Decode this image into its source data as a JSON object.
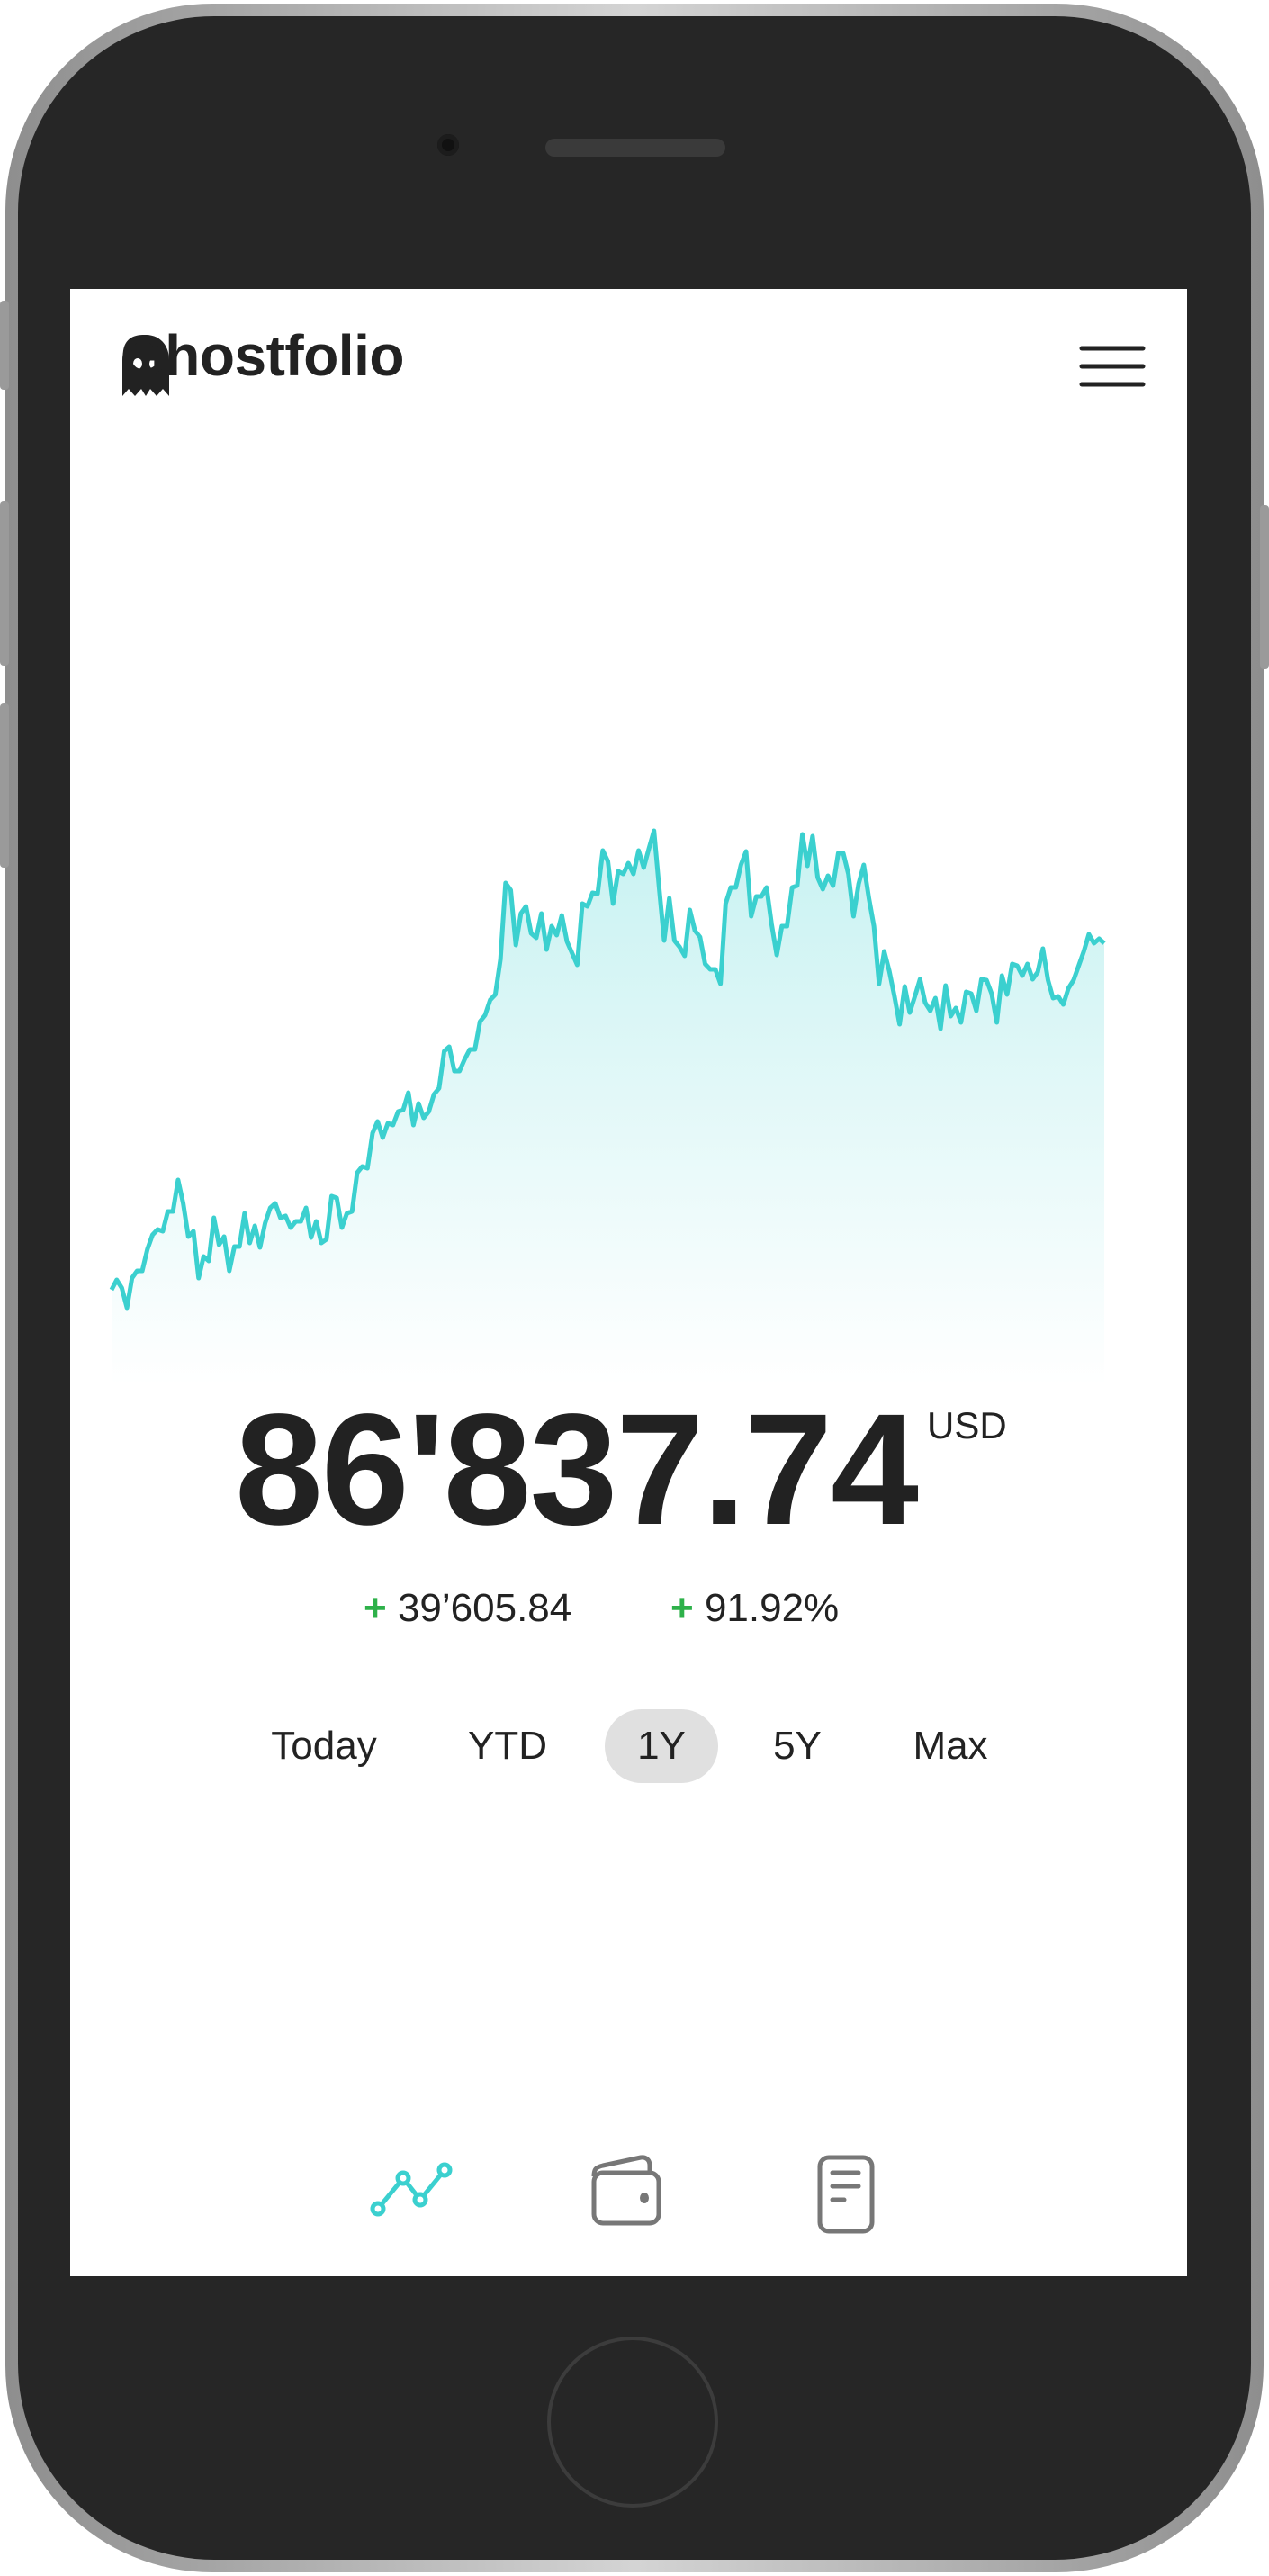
{
  "header": {
    "title": "Ghostfolio",
    "logo_icon": "ghost-icon",
    "menu_icon": "hamburger-menu-icon"
  },
  "summary": {
    "value": "86'837.74",
    "currency": "USD",
    "change_absolute": "39’605.84",
    "change_percent": "91.92%",
    "plus_sign": "+",
    "positive_color": "#2eb14a"
  },
  "range_tabs": {
    "items": [
      {
        "label": "Today"
      },
      {
        "label": "YTD"
      },
      {
        "label": "1Y"
      },
      {
        "label": "5Y"
      },
      {
        "label": "Max"
      }
    ],
    "selected": "1Y"
  },
  "bottom_nav": {
    "items": [
      {
        "icon": "line-chart-icon",
        "active": true
      },
      {
        "icon": "wallet-icon",
        "active": false
      },
      {
        "icon": "document-icon",
        "active": false
      }
    ],
    "active_color": "#3bd0cf",
    "inactive_color": "#777777"
  },
  "chart_data": {
    "type": "area",
    "line_color": "#3bd0cf",
    "grid": false,
    "axes_visible": false,
    "values": [
      47232,
      48364,
      47438,
      45175,
      48569,
      49392,
      49392,
      51861,
      53507,
      54124,
      53918,
      56181,
      56181,
      59782,
      57108,
      53301,
      53918,
      48569,
      51038,
      50524,
      55462,
      52376,
      53301,
      49392,
      52170,
      52170,
      55976,
      52581,
      54536,
      52067,
      54844,
      56593,
      57108,
      55462,
      55667,
      54330,
      55050,
      55050,
      56593,
      53198,
      55050,
      52581,
      52993,
      57930,
      57725,
      54330,
      55976,
      56181,
      60605,
      61325,
      61119,
      65131,
      66469,
      64616,
      66263,
      66057,
      67600,
      67806,
      69761,
      66057,
      68526,
      66878,
      67600,
      69555,
      70275,
      74493,
      75007,
      72229,
      72229,
      73567,
      74699,
      74699,
      77888,
      78607,
      80356,
      80973,
      84985,
      93729,
      92906,
      86631,
      90232,
      91055,
      87969,
      87454,
      90232,
      86117,
      88792,
      87761,
      90024,
      87041,
      85707,
      84368,
      91363,
      91055,
      92598,
      92495,
      97433,
      96199,
      91363,
      95066,
      94758,
      95992,
      94758,
      97433,
      95478,
      97638,
      99696,
      93215,
      87146,
      91980,
      87146,
      86423,
      85397,
      90643,
      88277,
      87557,
      84471,
      83854,
      83854,
      82208,
      91363,
      93215,
      93215,
      95787,
      97330,
      89923,
      92186,
      92186,
      93215,
      89000,
      85500,
      88792,
      88792,
      93215,
      93421,
      99284,
      95684,
      99078,
      94346,
      93009,
      94552,
      93421,
      97124,
      97124,
      94758,
      89923,
      93626,
      95787,
      91980,
      88792,
      82208,
      85911,
      83648,
      80768,
      77579,
      81899,
      78916,
      80768,
      82722,
      80047,
      79122,
      80562,
      77064,
      82002,
      78504,
      79430,
      77784,
      81282,
      81076,
      79122,
      82722,
      82619,
      81076,
      77784,
      83134,
      80973,
      84471,
      84265,
      83134,
      84471,
      82722,
      83545,
      86220,
      82619,
      80562,
      80768,
      79842,
      81694,
      82619,
      84265,
      85911,
      87866,
      86838,
      87352,
      86838
    ]
  }
}
